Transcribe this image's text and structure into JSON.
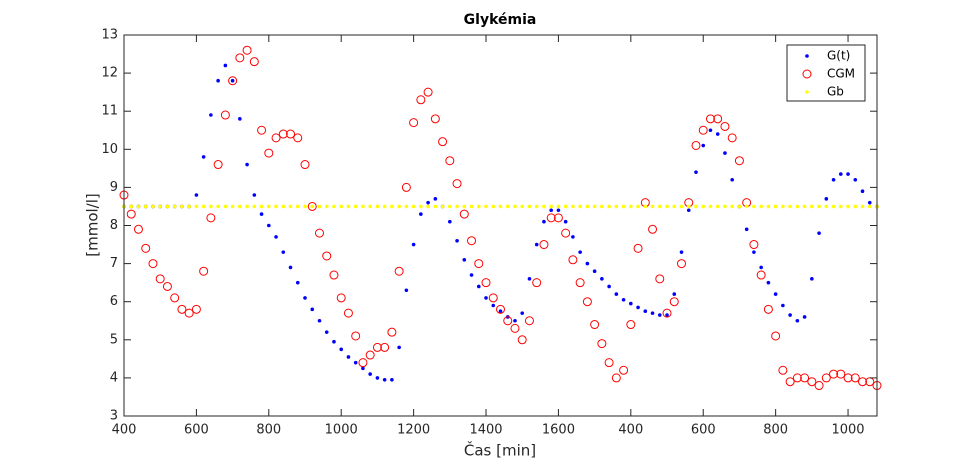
{
  "chart_data": {
    "type": "scatter",
    "title": "Glykémia",
    "x_label": "Čas [min]",
    "y_label": "[mmol/l]",
    "xlim": [
      400,
      2480
    ],
    "ylim": [
      3,
      13
    ],
    "xticks": [
      400,
      600,
      800,
      1000,
      1200,
      1400,
      1600,
      {
        "value": 1800,
        "label": "400"
      },
      {
        "value": 2000,
        "label": "600"
      },
      {
        "value": 2200,
        "label": "800"
      },
      {
        "value": 2400,
        "label": "1000"
      }
    ],
    "yticks": [
      3,
      4,
      5,
      6,
      7,
      8,
      9,
      10,
      11,
      12,
      13
    ],
    "grid": false,
    "legend_position": "top-right",
    "x": [
      400,
      420,
      440,
      460,
      480,
      500,
      520,
      540,
      560,
      580,
      600,
      620,
      640,
      660,
      680,
      700,
      720,
      740,
      760,
      780,
      800,
      820,
      840,
      860,
      880,
      900,
      920,
      940,
      960,
      980,
      1000,
      1020,
      1040,
      1060,
      1080,
      1100,
      1120,
      1140,
      1160,
      1180,
      1200,
      1220,
      1240,
      1260,
      1280,
      1300,
      1320,
      1340,
      1360,
      1380,
      1400,
      1420,
      1440,
      1460,
      1480,
      1500,
      1520,
      1540,
      1560,
      1580,
      1600,
      1620,
      1640,
      1660,
      1680,
      1700,
      1720,
      1740,
      1760,
      1780,
      1800,
      1820,
      1840,
      1860,
      1880,
      1900,
      1920,
      1940,
      1960,
      1980,
      2000,
      2020,
      2040,
      2060,
      2080,
      2100,
      2120,
      2140,
      2160,
      2180,
      2200,
      2220,
      2240,
      2260,
      2280,
      2300,
      2320,
      2340,
      2360,
      2380,
      2400,
      2420,
      2440,
      2460,
      2480
    ],
    "series": [
      {
        "name": "G(t)",
        "color": "#0000ff",
        "marker": "dot",
        "values": [
          8.5,
          8.5,
          8.5,
          8.5,
          8.5,
          8.5,
          8.5,
          8.5,
          8.5,
          8.5,
          8.8,
          9.8,
          10.9,
          11.8,
          12.2,
          11.8,
          10.8,
          9.6,
          8.8,
          8.3,
          8.0,
          7.7,
          7.3,
          6.9,
          6.5,
          6.1,
          5.8,
          5.5,
          5.2,
          4.95,
          4.75,
          4.55,
          4.4,
          4.25,
          4.1,
          4.0,
          3.95,
          3.95,
          4.8,
          6.3,
          7.5,
          8.3,
          8.6,
          8.7,
          8.5,
          8.1,
          7.6,
          7.1,
          6.7,
          6.4,
          6.1,
          5.9,
          5.75,
          5.6,
          5.5,
          5.7,
          6.6,
          7.5,
          8.1,
          8.4,
          8.4,
          8.1,
          7.7,
          7.3,
          7.0,
          6.8,
          6.6,
          6.4,
          6.2,
          6.05,
          5.95,
          5.85,
          5.75,
          5.7,
          5.65,
          5.65,
          6.2,
          7.3,
          8.4,
          9.4,
          10.1,
          10.5,
          10.4,
          9.9,
          9.2,
          8.5,
          7.9,
          7.3,
          6.9,
          6.5,
          6.2,
          5.9,
          5.65,
          5.5,
          5.6,
          6.6,
          7.8,
          8.7,
          9.2,
          9.35,
          9.35,
          9.2,
          8.9,
          8.6,
          8.5
        ]
      },
      {
        "name": "CGM",
        "color": "#ff0000",
        "marker": "circle",
        "values": [
          8.8,
          8.3,
          7.9,
          7.4,
          7.0,
          6.6,
          6.4,
          6.1,
          5.8,
          5.7,
          5.8,
          6.8,
          8.2,
          9.6,
          10.9,
          11.8,
          12.4,
          12.6,
          12.3,
          10.5,
          9.9,
          10.3,
          10.4,
          10.4,
          10.3,
          9.6,
          8.5,
          7.8,
          7.2,
          6.7,
          6.1,
          5.7,
          5.1,
          4.4,
          4.6,
          4.8,
          4.8,
          5.2,
          6.8,
          9.0,
          10.7,
          11.3,
          11.5,
          10.8,
          10.2,
          9.7,
          9.1,
          8.3,
          7.6,
          7.0,
          6.5,
          6.1,
          5.8,
          5.5,
          5.3,
          5.0,
          5.5,
          6.5,
          7.5,
          8.2,
          8.2,
          7.8,
          7.1,
          6.5,
          6.0,
          5.4,
          4.9,
          4.4,
          4.0,
          4.2,
          5.4,
          7.4,
          8.6,
          7.9,
          6.6,
          5.7,
          6.0,
          7.0,
          8.6,
          10.1,
          10.5,
          10.8,
          10.8,
          10.6,
          10.3,
          9.7,
          8.6,
          7.5,
          6.7,
          5.8,
          5.1,
          4.2,
          3.9,
          4.0,
          4.0,
          3.9,
          3.8,
          4.0,
          4.1,
          4.1,
          4.0,
          4.0,
          3.9,
          3.9,
          3.8
        ]
      },
      {
        "name": "Gb",
        "color": "#ffff00",
        "marker": "dot",
        "values": [
          8.5,
          8.5,
          8.5,
          8.5,
          8.5,
          8.5,
          8.5,
          8.5,
          8.5,
          8.5,
          8.5,
          8.5,
          8.5,
          8.5,
          8.5,
          8.5,
          8.5,
          8.5,
          8.5,
          8.5,
          8.5,
          8.5,
          8.5,
          8.5,
          8.5,
          8.5,
          8.5,
          8.5,
          8.5,
          8.5,
          8.5,
          8.5,
          8.5,
          8.5,
          8.5,
          8.5,
          8.5,
          8.5,
          8.5,
          8.5,
          8.5,
          8.5,
          8.5,
          8.5,
          8.5,
          8.5,
          8.5,
          8.5,
          8.5,
          8.5,
          8.5,
          8.5,
          8.5,
          8.5,
          8.5,
          8.5,
          8.5,
          8.5,
          8.5,
          8.5,
          8.5,
          8.5,
          8.5,
          8.5,
          8.5,
          8.5,
          8.5,
          8.5,
          8.5,
          8.5,
          8.5,
          8.5,
          8.5,
          8.5,
          8.5,
          8.5,
          8.5,
          8.5,
          8.5,
          8.5,
          8.5,
          8.5,
          8.5,
          8.5,
          8.5,
          8.5,
          8.5,
          8.5,
          8.5,
          8.5,
          8.5,
          8.5,
          8.5,
          8.5,
          8.5,
          8.5,
          8.5,
          8.5,
          8.5,
          8.5,
          8.5,
          8.5,
          8.5,
          8.5,
          8.5
        ]
      }
    ]
  }
}
